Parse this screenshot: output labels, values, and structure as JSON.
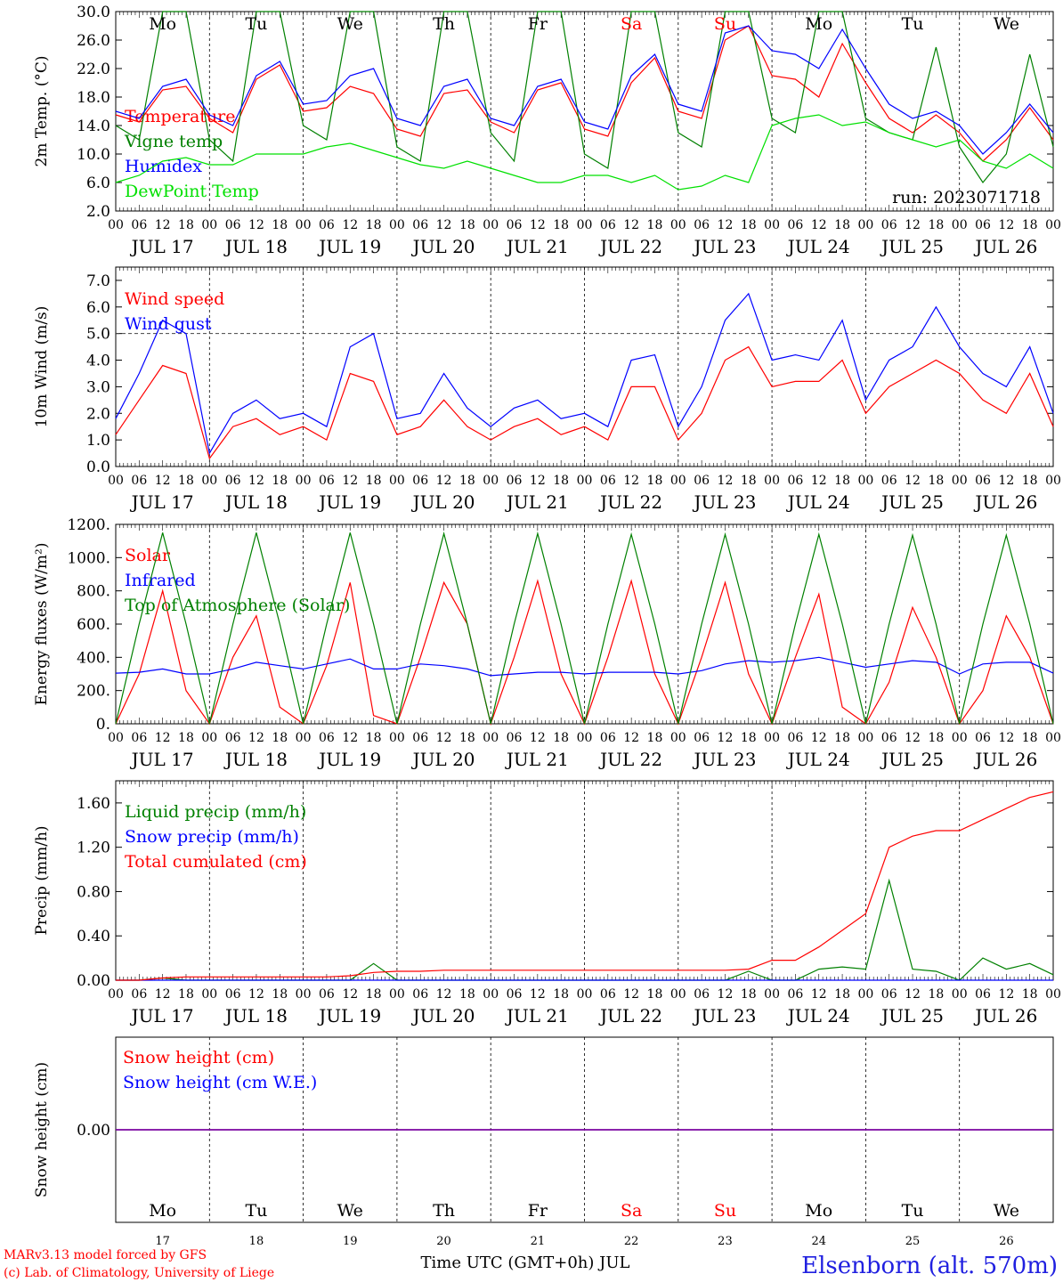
{
  "footer": {
    "model": "MARv3.13 model forced by GFS",
    "credit": "(c) Lab. of Climatology, University of Liege",
    "xlabel": "Time UTC (GMT+0h) JUL",
    "station": "Elsenborn (alt. 570m)"
  },
  "colors": {
    "red": "#ff0000",
    "green": "#008000",
    "blue": "#0000ff",
    "lightgreen": "#00e000",
    "purple": "#7a00a0",
    "weekend": "#ff0000"
  },
  "chart_data": {
    "type": "line",
    "run": "run: 2023071718",
    "days": [
      "Mo",
      "Tu",
      "We",
      "Th",
      "Fr",
      "Sa",
      "Su",
      "Mo",
      "Tu",
      "We"
    ],
    "weekend_days": [
      "Sa",
      "Su"
    ],
    "dates": [
      "JUL 17",
      "JUL 18",
      "JUL 19",
      "JUL 20",
      "JUL 21",
      "JUL 22",
      "JUL 23",
      "JUL 24",
      "JUL 25",
      "JUL 26"
    ],
    "day_numbers": [
      "17",
      "18",
      "19",
      "20",
      "21",
      "22",
      "23",
      "24",
      "25",
      "26"
    ],
    "hour_ticks": [
      "00",
      "06",
      "12",
      "18"
    ],
    "x_hours": [
      0,
      6,
      12,
      18,
      24,
      30,
      36,
      42,
      48,
      54,
      60,
      66,
      72,
      78,
      84,
      90,
      96,
      102,
      108,
      114,
      120,
      126,
      132,
      138,
      144,
      150,
      156,
      162,
      168,
      174,
      180,
      186,
      192,
      198,
      204,
      210,
      216,
      222,
      228,
      234,
      240
    ],
    "panels": [
      {
        "ylabel": "2m Temp. (°C)",
        "ylim": [
          2,
          30
        ],
        "yticks": [
          "2.0",
          "6.0",
          "10.0",
          "14.0",
          "18.0",
          "22.0",
          "26.0",
          "30.0"
        ],
        "yvals": [
          2,
          6,
          10,
          14,
          18,
          22,
          26,
          30
        ],
        "series": [
          {
            "name": "Temperature",
            "color": "#ff0000",
            "values": [
              15.5,
              14.5,
              19,
              19.5,
              15,
              13,
              20.5,
              22.5,
              16,
              16.5,
              19.5,
              18.5,
              13.5,
              12.5,
              18.5,
              19,
              14.5,
              13,
              19,
              20,
              13.5,
              12.5,
              20,
              23.5,
              16,
              15,
              26,
              28,
              21,
              20.5,
              18,
              25.5,
              20,
              15,
              13,
              15.5,
              13,
              9,
              12,
              16.5,
              12
            ]
          },
          {
            "name": "Vigne temp",
            "color": "#008000",
            "values": [
              14,
              12,
              30,
              30,
              12,
              9,
              30,
              30,
              14,
              12,
              30,
              30,
              11,
              9,
              30,
              30,
              13,
              9,
              30,
              30,
              10,
              8,
              30,
              30,
              13,
              11,
              30,
              30,
              15,
              13,
              30,
              30,
              15,
              13,
              12,
              25,
              11,
              6,
              10,
              24,
              11
            ]
          },
          {
            "name": "Humidex",
            "color": "#0000ff",
            "values": [
              16,
              15,
              19.5,
              20.5,
              15.5,
              14,
              21,
              23,
              17,
              17.5,
              21,
              22,
              15,
              14,
              19.5,
              20.5,
              15,
              14,
              19.5,
              20.5,
              14.5,
              13.5,
              21,
              24,
              17,
              16,
              27,
              28,
              24.5,
              24,
              22,
              27.5,
              22,
              17,
              15,
              16,
              14,
              10,
              13,
              17,
              13
            ]
          },
          {
            "name": "DewPoint Temp",
            "color": "#00e000",
            "values": [
              6,
              7,
              9,
              9.5,
              8.5,
              8.5,
              10,
              10,
              10,
              11,
              11.5,
              10.5,
              9.5,
              8.5,
              8,
              9,
              8,
              7,
              6,
              6,
              7,
              7,
              6,
              7,
              5,
              5.5,
              7,
              6,
              14,
              15,
              15.5,
              14,
              14.5,
              13,
              12,
              11,
              12,
              9,
              8,
              10,
              8
            ]
          }
        ]
      },
      {
        "ylabel": "10m Wind (m/s)",
        "ylim": [
          0,
          7.5
        ],
        "yticks": [
          "0.0",
          "1.0",
          "2.0",
          "3.0",
          "4.0",
          "5.0",
          "6.0",
          "7.0"
        ],
        "yvals": [
          0,
          1,
          2,
          3,
          4,
          5,
          6,
          7
        ],
        "ref_line": 5,
        "series": [
          {
            "name": "Wind speed",
            "color": "#ff0000",
            "values": [
              1.2,
              2.5,
              3.8,
              3.5,
              0.3,
              1.5,
              1.8,
              1.2,
              1.5,
              1.0,
              3.5,
              3.2,
              1.2,
              1.5,
              2.5,
              1.5,
              1.0,
              1.5,
              1.8,
              1.2,
              1.5,
              1.0,
              3.0,
              3.0,
              1.0,
              2.0,
              4.0,
              4.5,
              3.0,
              3.2,
              3.2,
              4.0,
              2.0,
              3.0,
              3.5,
              4.0,
              3.5,
              2.5,
              2.0,
              3.5,
              1.5
            ]
          },
          {
            "name": "Wind gust",
            "color": "#0000ff",
            "values": [
              1.8,
              3.5,
              5.5,
              5.0,
              0.5,
              2.0,
              2.5,
              1.8,
              2.0,
              1.5,
              4.5,
              5.0,
              1.8,
              2.0,
              3.5,
              2.2,
              1.5,
              2.2,
              2.5,
              1.8,
              2.0,
              1.5,
              4.0,
              4.2,
              1.5,
              3.0,
              5.5,
              6.5,
              4.0,
              4.2,
              4.0,
              5.5,
              2.5,
              4.0,
              4.5,
              6.0,
              4.5,
              3.5,
              3.0,
              4.5,
              2.0
            ]
          }
        ]
      },
      {
        "ylabel": "Energy fluxes (W/m²)",
        "ylim": [
          0,
          1200
        ],
        "yticks": [
          "0.",
          "200.",
          "400.",
          "600.",
          "800.",
          "1000.",
          "1200."
        ],
        "yvals": [
          0,
          200,
          400,
          600,
          800,
          1000,
          1200
        ],
        "series": [
          {
            "name": "Solar",
            "color": "#ff0000",
            "values": [
              0,
              300,
              800,
              200,
              0,
              400,
              650,
              100,
              0,
              350,
              850,
              50,
              0,
              400,
              850,
              600,
              0,
              400,
              860,
              300,
              0,
              400,
              860,
              300,
              0,
              400,
              850,
              300,
              0,
              400,
              780,
              100,
              0,
              250,
              700,
              400,
              0,
              200,
              650,
              400,
              0
            ]
          },
          {
            "name": "Infrared",
            "color": "#0000ff",
            "values": [
              305,
              310,
              330,
              300,
              300,
              330,
              370,
              350,
              330,
              360,
              390,
              330,
              330,
              360,
              350,
              330,
              290,
              300,
              310,
              310,
              300,
              310,
              310,
              310,
              300,
              320,
              360,
              380,
              370,
              380,
              400,
              370,
              340,
              360,
              380,
              370,
              300,
              360,
              370,
              370,
              305
            ]
          },
          {
            "name": "Top of Atmosphere (Solar)",
            "color": "#008000",
            "values": [
              0,
              600,
              1150,
              600,
              0,
              600,
              1150,
              600,
              0,
              600,
              1150,
              600,
              0,
              600,
              1145,
              600,
              0,
              600,
              1145,
              600,
              0,
              600,
              1140,
              600,
              0,
              600,
              1140,
              600,
              0,
              600,
              1140,
              600,
              0,
              600,
              1135,
              600,
              0,
              600,
              1135,
              600,
              0
            ]
          }
        ]
      },
      {
        "ylabel": "Precip (mm/h)",
        "ylim": [
          0,
          1.8
        ],
        "yticks": [
          "0.00",
          "0.40",
          "0.80",
          "1.20",
          "1.60"
        ],
        "yvals": [
          0,
          0.4,
          0.8,
          1.2,
          1.6
        ],
        "series": [
          {
            "name": "Liquid precip (mm/h)",
            "color": "#008000",
            "values": [
              0,
              0,
              0.02,
              0,
              0,
              0,
              0,
              0,
              0,
              0,
              0,
              0.15,
              0,
              0,
              0,
              0,
              0,
              0,
              0,
              0,
              0,
              0,
              0,
              0,
              0,
              0,
              0,
              0.08,
              0,
              0,
              0.1,
              0.12,
              0.1,
              0.9,
              0.1,
              0.08,
              0,
              0.2,
              0.1,
              0.15,
              0.05
            ]
          },
          {
            "name": "Snow precip (mm/h)",
            "color": "#0000ff",
            "values": [
              0,
              0,
              0,
              0,
              0,
              0,
              0,
              0,
              0,
              0,
              0,
              0,
              0,
              0,
              0,
              0,
              0,
              0,
              0,
              0,
              0,
              0,
              0,
              0,
              0,
              0,
              0,
              0,
              0,
              0,
              0,
              0,
              0,
              0,
              0,
              0,
              0,
              0,
              0,
              0,
              0
            ]
          },
          {
            "name": "Total cumulated (cm)",
            "color": "#ff0000",
            "values": [
              0,
              0,
              0.02,
              0.03,
              0.03,
              0.03,
              0.03,
              0.03,
              0.03,
              0.03,
              0.04,
              0.07,
              0.08,
              0.08,
              0.09,
              0.09,
              0.09,
              0.09,
              0.09,
              0.09,
              0.09,
              0.09,
              0.09,
              0.09,
              0.09,
              0.09,
              0.09,
              0.1,
              0.18,
              0.18,
              0.3,
              0.45,
              0.6,
              1.2,
              1.3,
              1.35,
              1.35,
              1.45,
              1.55,
              1.65,
              1.7
            ]
          }
        ]
      },
      {
        "ylabel": "Snow height (cm)",
        "ylim": [
          -1,
          1
        ],
        "yticks": [
          "0.00"
        ],
        "yvals": [
          0
        ],
        "series": [
          {
            "name": "Snow height (cm)",
            "color": "#ff0000",
            "values": [
              0,
              0,
              0,
              0,
              0,
              0,
              0,
              0,
              0,
              0,
              0,
              0,
              0,
              0,
              0,
              0,
              0,
              0,
              0,
              0,
              0,
              0,
              0,
              0,
              0,
              0,
              0,
              0,
              0,
              0,
              0,
              0,
              0,
              0,
              0,
              0,
              0,
              0,
              0,
              0,
              0
            ]
          },
          {
            "name": "Snow height (cm W.E.)",
            "color": "#0000ff",
            "values": [
              0,
              0,
              0,
              0,
              0,
              0,
              0,
              0,
              0,
              0,
              0,
              0,
              0,
              0,
              0,
              0,
              0,
              0,
              0,
              0,
              0,
              0,
              0,
              0,
              0,
              0,
              0,
              0,
              0,
              0,
              0,
              0,
              0,
              0,
              0,
              0,
              0,
              0,
              0,
              0,
              0
            ]
          }
        ]
      }
    ]
  }
}
